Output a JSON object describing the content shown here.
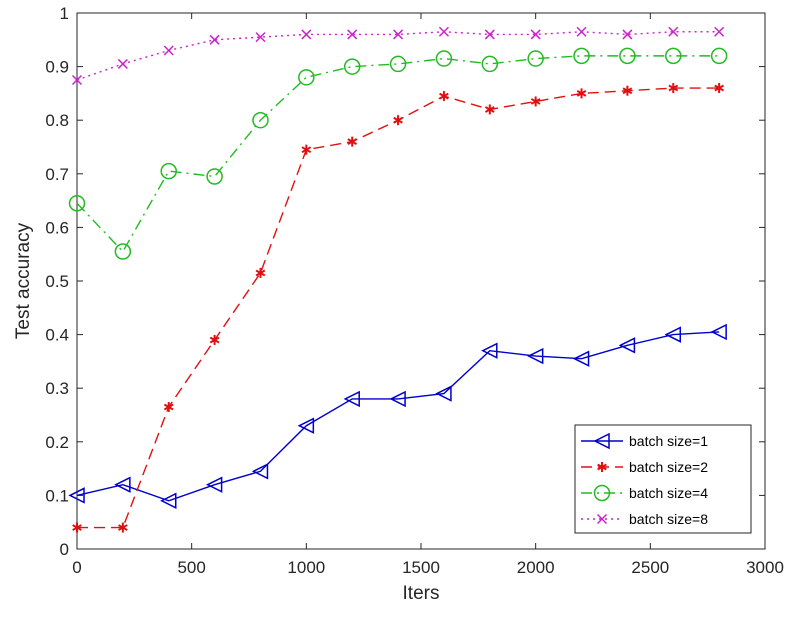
{
  "chart_data": {
    "type": "line",
    "xlabel": "Iters",
    "ylabel": "Test accuracy",
    "xlim": [
      0,
      3000
    ],
    "ylim": [
      0,
      1
    ],
    "xticks": [
      0,
      500,
      1000,
      1500,
      2000,
      2500,
      3000
    ],
    "xtick_labels": [
      "0",
      "500",
      "1000",
      "1500",
      "2000",
      "2500",
      "3000"
    ],
    "yticks": [
      0,
      0.1,
      0.2,
      0.3,
      0.4,
      0.5,
      0.6,
      0.7,
      0.8,
      0.9,
      1
    ],
    "ytick_labels": [
      "0",
      "0.1",
      "0.2",
      "0.3",
      "0.4",
      "0.5",
      "0.6",
      "0.7",
      "0.8",
      "0.9",
      "1"
    ],
    "grid": false,
    "legend_position": "bottom-right",
    "x": [
      0,
      200,
      400,
      600,
      800,
      1000,
      1200,
      1400,
      1600,
      1800,
      2000,
      2200,
      2400,
      2600,
      2800
    ],
    "series": [
      {
        "name": "batch size=1",
        "color": "#0000cc",
        "line_style": "solid",
        "marker": "triangle-left",
        "values": [
          0.1,
          0.12,
          0.09,
          0.12,
          0.145,
          0.23,
          0.28,
          0.28,
          0.29,
          0.37,
          0.36,
          0.355,
          0.38,
          0.4,
          0.405
        ]
      },
      {
        "name": "batch size=2",
        "color": "#e01010",
        "line_style": "dashed",
        "marker": "asterisk",
        "values": [
          0.04,
          0.04,
          0.265,
          0.39,
          0.515,
          0.745,
          0.76,
          0.8,
          0.845,
          0.82,
          0.835,
          0.85,
          0.855,
          0.86,
          0.86
        ]
      },
      {
        "name": "batch size=4",
        "color": "#22bb22",
        "line_style": "dashdot",
        "marker": "circle",
        "values": [
          0.645,
          0.555,
          0.705,
          0.695,
          0.8,
          0.88,
          0.9,
          0.905,
          0.915,
          0.905,
          0.915,
          0.92,
          0.92,
          0.92,
          0.92
        ]
      },
      {
        "name": "batch size=8",
        "color": "#cc22cc",
        "line_style": "dotted",
        "marker": "x",
        "values": [
          0.875,
          0.905,
          0.93,
          0.95,
          0.955,
          0.96,
          0.96,
          0.96,
          0.965,
          0.96,
          0.96,
          0.965,
          0.96,
          0.965,
          0.965
        ]
      }
    ]
  }
}
